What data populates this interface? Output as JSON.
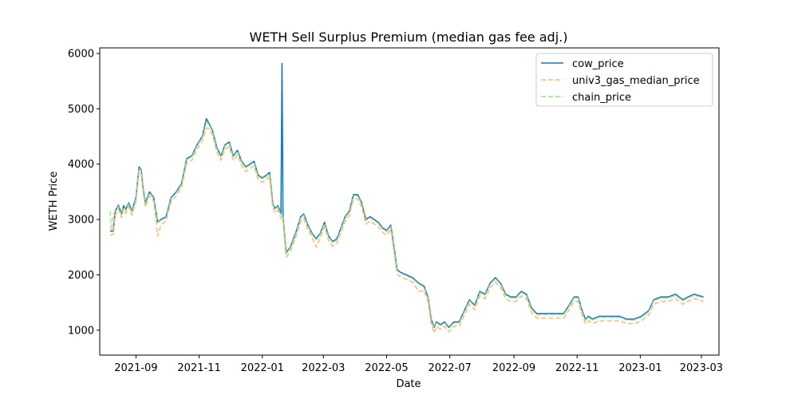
{
  "chart_data": {
    "type": "line",
    "title": "WETH Sell Surplus Premium (median gas fee adj.)",
    "xlabel": "Date",
    "ylabel": "WETH Price",
    "xlim": [
      "2021-07-28",
      "2023-03-18"
    ],
    "ylim": [
      550,
      6100
    ],
    "x_ticks": [
      "2021-09",
      "2021-11",
      "2022-01",
      "2022-03",
      "2022-05",
      "2022-07",
      "2022-09",
      "2022-11",
      "2023-01",
      "2023-03"
    ],
    "y_ticks": [
      1000,
      2000,
      3000,
      4000,
      5000,
      6000
    ],
    "grid": false,
    "legend": "top-right",
    "series": [
      {
        "name": "cow_price",
        "color": "#1f77b4",
        "style": "solid",
        "x": [
          "2021-08-07",
          "2021-08-10",
          "2021-08-12",
          "2021-08-15",
          "2021-08-18",
          "2021-08-20",
          "2021-08-22",
          "2021-08-25",
          "2021-08-28",
          "2021-09-01",
          "2021-09-04",
          "2021-09-06",
          "2021-09-08",
          "2021-09-10",
          "2021-09-14",
          "2021-09-18",
          "2021-09-22",
          "2021-09-25",
          "2021-09-30",
          "2021-10-05",
          "2021-10-10",
          "2021-10-15",
          "2021-10-20",
          "2021-10-25",
          "2021-10-30",
          "2021-11-04",
          "2021-11-08",
          "2021-11-10",
          "2021-11-14",
          "2021-11-18",
          "2021-11-22",
          "2021-11-26",
          "2021-11-30",
          "2021-12-04",
          "2021-12-08",
          "2021-12-12",
          "2021-12-16",
          "2021-12-20",
          "2021-12-24",
          "2021-12-28",
          "2022-01-01",
          "2022-01-05",
          "2022-01-08",
          "2022-01-11",
          "2022-01-13",
          "2022-01-16",
          "2022-01-19",
          "2022-01-20",
          "2022-01-21",
          "2022-01-24",
          "2022-01-28",
          "2022-02-03",
          "2022-02-07",
          "2022-02-10",
          "2022-02-14",
          "2022-02-18",
          "2022-02-22",
          "2022-02-26",
          "2022-03-02",
          "2022-03-06",
          "2022-03-10",
          "2022-03-14",
          "2022-03-18",
          "2022-03-22",
          "2022-03-26",
          "2022-03-30",
          "2022-04-03",
          "2022-04-07",
          "2022-04-11",
          "2022-04-15",
          "2022-04-19",
          "2022-04-23",
          "2022-04-27",
          "2022-05-01",
          "2022-05-05",
          "2022-05-09",
          "2022-05-11",
          "2022-05-14",
          "2022-05-20",
          "2022-05-26",
          "2022-06-01",
          "2022-06-06",
          "2022-06-10",
          "2022-06-13",
          "2022-06-16",
          "2022-06-18",
          "2022-06-22",
          "2022-06-26",
          "2022-06-30",
          "2022-07-05",
          "2022-07-10",
          "2022-07-15",
          "2022-07-20",
          "2022-07-25",
          "2022-07-30",
          "2022-08-04",
          "2022-08-09",
          "2022-08-14",
          "2022-08-19",
          "2022-08-24",
          "2022-08-29",
          "2022-09-03",
          "2022-09-08",
          "2022-09-13",
          "2022-09-18",
          "2022-09-23",
          "2022-09-28",
          "2022-10-05",
          "2022-10-12",
          "2022-10-19",
          "2022-10-26",
          "2022-10-29",
          "2022-11-02",
          "2022-11-05",
          "2022-11-09",
          "2022-11-12",
          "2022-11-16",
          "2022-11-22",
          "2022-11-28",
          "2022-12-05",
          "2022-12-12",
          "2022-12-19",
          "2022-12-26",
          "2023-01-02",
          "2023-01-09",
          "2023-01-14",
          "2023-01-21",
          "2023-01-28",
          "2023-02-04",
          "2023-02-11",
          "2023-02-16",
          "2023-02-22",
          "2023-03-03"
        ],
        "y": [
          2790,
          2790,
          3150,
          3260,
          3100,
          3250,
          3180,
          3300,
          3150,
          3400,
          3950,
          3900,
          3550,
          3300,
          3500,
          3400,
          2950,
          3000,
          3050,
          3400,
          3500,
          3650,
          4100,
          4150,
          4350,
          4500,
          4820,
          4750,
          4600,
          4300,
          4150,
          4350,
          4400,
          4150,
          4250,
          4050,
          3950,
          4000,
          4050,
          3800,
          3750,
          3800,
          3850,
          3300,
          3200,
          3250,
          3100,
          5820,
          3050,
          2400,
          2500,
          2800,
          3050,
          3100,
          2900,
          2750,
          2650,
          2750,
          2950,
          2700,
          2600,
          2650,
          2850,
          3050,
          3150,
          3450,
          3450,
          3300,
          3000,
          3050,
          3000,
          2950,
          2850,
          2800,
          2900,
          2400,
          2100,
          2050,
          2000,
          1950,
          1850,
          1800,
          1600,
          1200,
          1050,
          1150,
          1100,
          1150,
          1050,
          1150,
          1150,
          1350,
          1550,
          1450,
          1700,
          1650,
          1850,
          1950,
          1850,
          1650,
          1600,
          1600,
          1700,
          1650,
          1400,
          1300,
          1300,
          1300,
          1300,
          1300,
          1500,
          1600,
          1600,
          1400,
          1200,
          1250,
          1200,
          1250,
          1250,
          1250,
          1250,
          1200,
          1200,
          1250,
          1350,
          1550,
          1600,
          1600,
          1650,
          1550,
          1600,
          1650,
          1600
        ]
      },
      {
        "name": "univ3_gas_median_price",
        "color": "#ffbb78",
        "style": "dashed",
        "x": [
          "2021-08-07",
          "2021-08-10",
          "2021-08-12",
          "2021-08-15",
          "2021-08-18",
          "2021-08-20",
          "2021-08-22",
          "2021-08-25",
          "2021-08-28",
          "2021-09-01",
          "2021-09-04",
          "2021-09-06",
          "2021-09-08",
          "2021-09-10",
          "2021-09-14",
          "2021-09-18",
          "2021-09-22",
          "2021-09-25",
          "2021-09-30",
          "2021-10-05",
          "2021-10-10",
          "2021-10-15",
          "2021-10-20",
          "2021-10-25",
          "2021-10-30",
          "2021-11-04",
          "2021-11-08",
          "2021-11-10",
          "2021-11-14",
          "2021-11-18",
          "2021-11-22",
          "2021-11-26",
          "2021-11-30",
          "2021-12-04",
          "2021-12-08",
          "2021-12-12",
          "2021-12-16",
          "2021-12-20",
          "2021-12-24",
          "2021-12-28",
          "2022-01-01",
          "2022-01-05",
          "2022-01-08",
          "2022-01-11",
          "2022-01-13",
          "2022-01-16",
          "2022-01-19",
          "2022-01-21",
          "2022-01-24",
          "2022-01-28",
          "2022-02-03",
          "2022-02-07",
          "2022-02-10",
          "2022-02-14",
          "2022-02-18",
          "2022-02-22",
          "2022-02-26",
          "2022-03-02",
          "2022-03-06",
          "2022-03-10",
          "2022-03-14",
          "2022-03-18",
          "2022-03-22",
          "2022-03-26",
          "2022-03-30",
          "2022-04-03",
          "2022-04-07",
          "2022-04-11",
          "2022-04-15",
          "2022-04-19",
          "2022-04-23",
          "2022-04-27",
          "2022-05-01",
          "2022-05-05",
          "2022-05-09",
          "2022-05-11",
          "2022-05-14",
          "2022-05-20",
          "2022-05-26",
          "2022-06-01",
          "2022-06-06",
          "2022-06-10",
          "2022-06-13",
          "2022-06-16",
          "2022-06-18",
          "2022-06-22",
          "2022-06-26",
          "2022-06-30",
          "2022-07-05",
          "2022-07-10",
          "2022-07-15",
          "2022-07-20",
          "2022-07-25",
          "2022-07-30",
          "2022-08-04",
          "2022-08-09",
          "2022-08-14",
          "2022-08-19",
          "2022-08-24",
          "2022-08-29",
          "2022-09-03",
          "2022-09-08",
          "2022-09-13",
          "2022-09-18",
          "2022-09-23",
          "2022-09-28",
          "2022-10-05",
          "2022-10-12",
          "2022-10-19",
          "2022-10-26",
          "2022-10-29",
          "2022-11-02",
          "2022-11-05",
          "2022-11-09",
          "2022-11-12",
          "2022-11-16",
          "2022-11-22",
          "2022-11-28",
          "2022-12-05",
          "2022-12-12",
          "2022-12-19",
          "2022-12-26",
          "2023-01-02",
          "2023-01-09",
          "2023-01-14",
          "2023-01-21",
          "2023-01-28",
          "2023-02-04",
          "2023-02-11",
          "2023-02-16",
          "2023-02-22",
          "2023-03-03"
        ],
        "y": [
          2720,
          2730,
          3080,
          3190,
          3030,
          3180,
          3110,
          3230,
          3080,
          3330,
          3870,
          3820,
          3470,
          3230,
          3430,
          3330,
          2700,
          2900,
          2980,
          3330,
          3430,
          3580,
          4020,
          4070,
          4270,
          4420,
          4650,
          4650,
          4520,
          4220,
          4070,
          4270,
          4320,
          4070,
          4170,
          3970,
          3870,
          3920,
          3970,
          3720,
          3670,
          3720,
          3770,
          3220,
          3120,
          3170,
          3020,
          2970,
          2320,
          2420,
          2720,
          2970,
          3020,
          2820,
          2670,
          2500,
          2670,
          2870,
          2620,
          2520,
          2570,
          2770,
          2970,
          3070,
          3370,
          3370,
          3220,
          2920,
          2970,
          2920,
          2870,
          2770,
          2720,
          2820,
          2300,
          2020,
          1970,
          1920,
          1870,
          1700,
          1720,
          1520,
          1120,
          950,
          1070,
          1020,
          1070,
          970,
          1070,
          1070,
          1270,
          1470,
          1370,
          1620,
          1570,
          1770,
          1870,
          1770,
          1570,
          1520,
          1520,
          1620,
          1570,
          1320,
          1220,
          1220,
          1220,
          1220,
          1220,
          1420,
          1520,
          1520,
          1320,
          1120,
          1170,
          1120,
          1170,
          1170,
          1170,
          1170,
          1120,
          1120,
          1170,
          1270,
          1470,
          1520,
          1520,
          1570,
          1470,
          1520,
          1570,
          1520
        ]
      },
      {
        "name": "chain_price",
        "color": "#98df8a",
        "style": "dashed",
        "x": [
          "2021-08-07",
          "2021-08-08",
          "2021-08-10",
          "2021-08-12",
          "2021-08-15",
          "2021-08-18",
          "2021-08-20",
          "2021-08-22",
          "2021-08-25",
          "2021-08-28",
          "2021-09-01",
          "2021-09-04",
          "2021-09-06",
          "2021-09-08",
          "2021-09-10",
          "2021-09-14",
          "2021-09-18",
          "2021-09-22",
          "2021-09-25",
          "2021-09-30",
          "2021-10-05",
          "2021-10-10",
          "2021-10-15",
          "2021-10-20",
          "2021-10-25",
          "2021-10-30",
          "2021-11-04",
          "2021-11-08",
          "2021-11-10",
          "2021-11-14",
          "2021-11-18",
          "2021-11-22",
          "2021-11-26",
          "2021-11-30",
          "2021-12-04",
          "2021-12-08",
          "2021-12-12",
          "2021-12-16",
          "2021-12-20",
          "2021-12-24",
          "2021-12-28",
          "2022-01-01",
          "2022-01-05",
          "2022-01-08",
          "2022-01-11",
          "2022-01-13",
          "2022-01-16",
          "2022-01-19",
          "2022-01-21",
          "2022-01-24",
          "2022-01-28",
          "2022-02-03",
          "2022-02-07",
          "2022-02-10",
          "2022-02-14",
          "2022-02-18",
          "2022-02-22",
          "2022-02-26",
          "2022-03-02",
          "2022-03-06",
          "2022-03-10",
          "2022-03-14",
          "2022-03-18",
          "2022-03-22",
          "2022-03-26",
          "2022-03-30",
          "2022-04-03",
          "2022-04-07",
          "2022-04-11",
          "2022-04-15",
          "2022-04-19",
          "2022-04-23",
          "2022-04-27",
          "2022-05-01",
          "2022-05-05",
          "2022-05-09",
          "2022-05-11",
          "2022-05-14",
          "2022-05-20",
          "2022-05-26",
          "2022-06-01",
          "2022-06-06",
          "2022-06-10",
          "2022-06-13",
          "2022-06-16",
          "2022-06-18",
          "2022-06-22",
          "2022-06-26",
          "2022-06-30",
          "2022-07-05",
          "2022-07-10",
          "2022-07-15",
          "2022-07-20",
          "2022-07-25",
          "2022-07-30",
          "2022-08-04",
          "2022-08-09",
          "2022-08-14",
          "2022-08-19",
          "2022-08-24",
          "2022-08-29",
          "2022-09-03",
          "2022-09-08",
          "2022-09-13",
          "2022-09-18",
          "2022-09-23",
          "2022-09-28",
          "2022-10-05",
          "2022-10-12",
          "2022-10-19",
          "2022-10-26",
          "2022-10-29",
          "2022-11-02",
          "2022-11-05",
          "2022-11-09",
          "2022-11-12",
          "2022-11-16",
          "2022-11-22",
          "2022-11-28",
          "2022-12-05",
          "2022-12-12",
          "2022-12-19",
          "2022-12-26",
          "2023-01-02",
          "2023-01-09",
          "2023-01-14",
          "2023-01-21",
          "2023-01-28",
          "2023-02-04",
          "2023-02-11",
          "2023-02-16",
          "2023-02-22",
          "2023-03-03"
        ],
        "y": [
          3150,
          2800,
          3100,
          3140,
          3240,
          3080,
          3230,
          3160,
          3280,
          3130,
          3380,
          3930,
          3880,
          3530,
          3280,
          3480,
          3380,
          2950,
          2980,
          3030,
          3380,
          3480,
          3630,
          4080,
          4130,
          4330,
          4480,
          4760,
          4730,
          4580,
          4280,
          4130,
          4330,
          4380,
          4130,
          4230,
          4030,
          3930,
          3980,
          4030,
          3780,
          3730,
          3780,
          3830,
          3280,
          3180,
          3230,
          3080,
          3030,
          2380,
          2480,
          2780,
          3030,
          3080,
          2880,
          2730,
          2630,
          2730,
          2930,
          2680,
          2580,
          2630,
          2830,
          3030,
          3130,
          3430,
          3430,
          3280,
          2980,
          3030,
          2980,
          2930,
          2830,
          2780,
          2880,
          2380,
          2080,
          2030,
          1980,
          1930,
          1830,
          1780,
          1580,
          1180,
          1030,
          1130,
          1080,
          1130,
          1030,
          1130,
          1130,
          1330,
          1530,
          1430,
          1680,
          1630,
          1830,
          1930,
          1830,
          1630,
          1580,
          1580,
          1680,
          1630,
          1380,
          1280,
          1280,
          1280,
          1280,
          1280,
          1480,
          1580,
          1580,
          1380,
          1180,
          1230,
          1180,
          1230,
          1230,
          1230,
          1230,
          1180,
          1180,
          1230,
          1330,
          1530,
          1580,
          1580,
          1630,
          1530,
          1580,
          1630,
          1580
        ]
      }
    ]
  }
}
